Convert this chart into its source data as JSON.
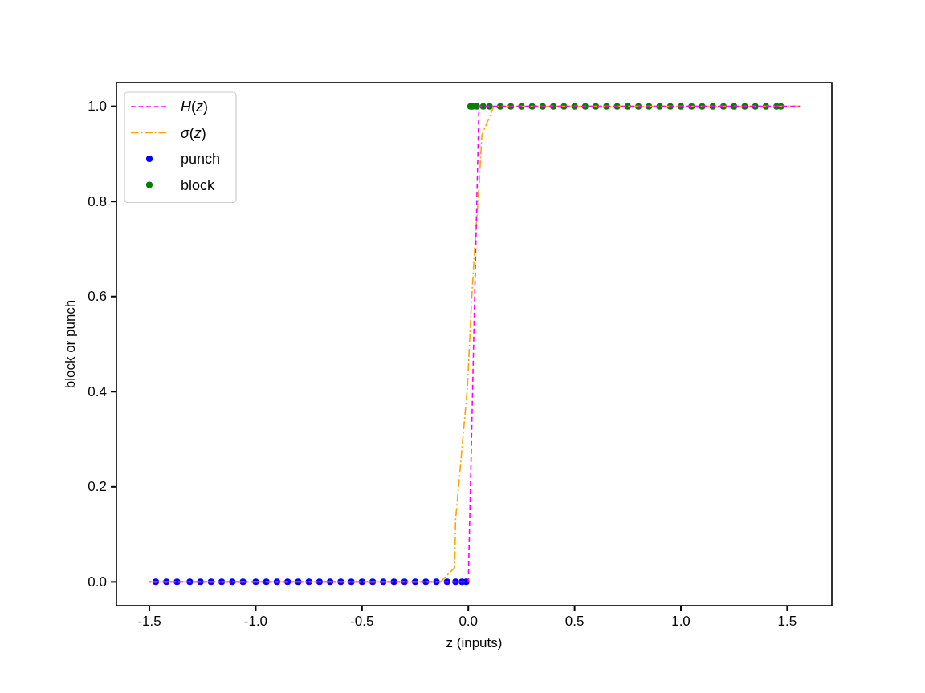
{
  "chart_data": {
    "type": "line",
    "xlabel": "z (inputs)",
    "ylabel": "block or punch",
    "legend": "top left",
    "xlim": [
      -1.655,
      1.71
    ],
    "ylim": [
      -0.05,
      1.05
    ],
    "xticks": [
      {
        "value": -1.5,
        "label": "-1.5"
      },
      {
        "value": -1,
        "label": "-1.0"
      },
      {
        "value": -0.5,
        "label": "-0.5"
      },
      {
        "value": 0,
        "label": "0.0"
      },
      {
        "value": 0.5,
        "label": "0.5"
      },
      {
        "value": 1,
        "label": "1.0"
      },
      {
        "value": 1.5,
        "label": "1.5"
      }
    ],
    "yticks": [
      {
        "value": 0,
        "label": "0.0"
      },
      {
        "value": 0.2,
        "label": "0.2"
      },
      {
        "value": 0.4,
        "label": "0.4"
      },
      {
        "value": 0.6,
        "label": "0.6"
      },
      {
        "value": 0.8,
        "label": "0.8"
      },
      {
        "value": 1,
        "label": "1.0"
      }
    ],
    "series": [
      {
        "name": "H(z)",
        "type": "line",
        "color": "#ff00ff",
        "line_style": "dashed",
        "x": [
          -1.5,
          0.0,
          0.05,
          1.56
        ],
        "values": [
          0,
          0,
          1,
          1
        ]
      },
      {
        "name": "σ(z)",
        "type": "line",
        "color": "#ffa500",
        "line_style": "dashdot",
        "x": [
          -1.5,
          -0.13,
          -0.064,
          -0.06,
          -0.03,
          -0.004,
          0.015,
          0.03,
          0.05,
          0.064,
          0.12,
          1.56
        ],
        "values": [
          0,
          0,
          0.03,
          0.13,
          0.28,
          0.41,
          0.59,
          0.7,
          0.83,
          0.94,
          1,
          1
        ]
      },
      {
        "name": "punch",
        "type": "scatter",
        "color": "#0000ff",
        "marker": "circle",
        "x": [
          -1.47,
          -1.42,
          -1.37,
          -1.31,
          -1.26,
          -1.21,
          -1.16,
          -1.11,
          -1.06,
          -1.0,
          -0.95,
          -0.9,
          -0.85,
          -0.8,
          -0.75,
          -0.7,
          -0.65,
          -0.6,
          -0.55,
          -0.5,
          -0.45,
          -0.4,
          -0.35,
          -0.3,
          -0.25,
          -0.2,
          -0.15,
          -0.1,
          -0.06,
          -0.03,
          -0.01
        ],
        "values": [
          0,
          0,
          0,
          0,
          0,
          0,
          0,
          0,
          0,
          0,
          0,
          0,
          0,
          0,
          0,
          0,
          0,
          0,
          0,
          0,
          0,
          0,
          0,
          0,
          0,
          0,
          0,
          0,
          0,
          0,
          0
        ]
      },
      {
        "name": "block",
        "type": "scatter",
        "color": "#008000",
        "marker": "circle",
        "x": [
          0.01,
          0.02,
          0.04,
          0.07,
          0.1,
          0.15,
          0.2,
          0.25,
          0.3,
          0.35,
          0.4,
          0.45,
          0.5,
          0.55,
          0.6,
          0.65,
          0.7,
          0.75,
          0.8,
          0.85,
          0.9,
          0.95,
          1.0,
          1.05,
          1.1,
          1.15,
          1.2,
          1.25,
          1.3,
          1.35,
          1.4,
          1.45,
          1.47
        ],
        "values": [
          1,
          1,
          1,
          1,
          1,
          1,
          1,
          1,
          1,
          1,
          1,
          1,
          1,
          1,
          1,
          1,
          1,
          1,
          1,
          1,
          1,
          1,
          1,
          1,
          1,
          1,
          1,
          1,
          1,
          1,
          1,
          1,
          1
        ]
      }
    ]
  }
}
